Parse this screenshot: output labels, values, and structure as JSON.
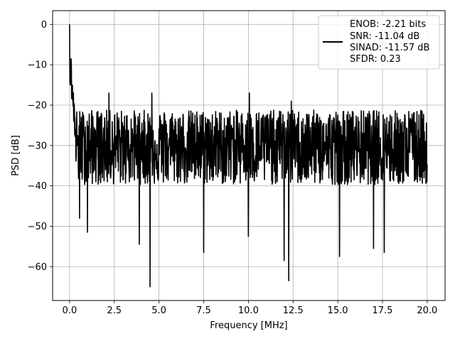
{
  "chart_data": {
    "type": "line",
    "xlabel": "Frequency [MHz]",
    "ylabel": "PSD [dB]",
    "xlim": [
      -0.95,
      21.0
    ],
    "ylim": [
      -68.4,
      3.4
    ],
    "xticks": [
      0.0,
      2.5,
      5.0,
      7.5,
      10.0,
      12.5,
      15.0,
      17.5,
      20.0
    ],
    "xtick_labels": [
      "0.0",
      "2.5",
      "5.0",
      "7.5",
      "10.0",
      "12.5",
      "15.0",
      "17.5",
      "20.0"
    ],
    "yticks": [
      0,
      -10,
      -20,
      -30,
      -40,
      -50,
      -60
    ],
    "ytick_labels": [
      "0",
      "−10",
      "−20",
      "−30",
      "−40",
      "−50",
      "−60"
    ],
    "grid": true,
    "legend_position": "top-right",
    "series": [
      {
        "color": "#000000",
        "legend_lines": [
          "ENOB: -2.21 bits",
          "SNR: -11.04 dB",
          "SINAD: -11.57 dB",
          "SFDR: 0.23"
        ],
        "x_range": [
          0.0,
          20.0
        ],
        "peak": {
          "x": 0.0,
          "y": 0.0
        },
        "noise_floor_mean_db": -30,
        "noise_upper_envelope_db": -22,
        "noise_lower_envelope_db": -40,
        "notable_peaks": [
          {
            "x": 0.05,
            "y": -10
          },
          {
            "x": 2.2,
            "y": -17
          },
          {
            "x": 4.6,
            "y": -17
          },
          {
            "x": 10.05,
            "y": -17
          },
          {
            "x": 12.4,
            "y": -19
          }
        ],
        "notable_dips": [
          {
            "x": 0.55,
            "y": -48
          },
          {
            "x": 1.0,
            "y": -51.5
          },
          {
            "x": 3.9,
            "y": -54.5
          },
          {
            "x": 4.5,
            "y": -65
          },
          {
            "x": 7.5,
            "y": -56.5
          },
          {
            "x": 10.0,
            "y": -52.5
          },
          {
            "x": 12.0,
            "y": -58.5
          },
          {
            "x": 12.25,
            "y": -63.5
          },
          {
            "x": 15.1,
            "y": -57.5
          },
          {
            "x": 17.0,
            "y": -55.5
          },
          {
            "x": 17.6,
            "y": -56.5
          }
        ]
      }
    ]
  }
}
